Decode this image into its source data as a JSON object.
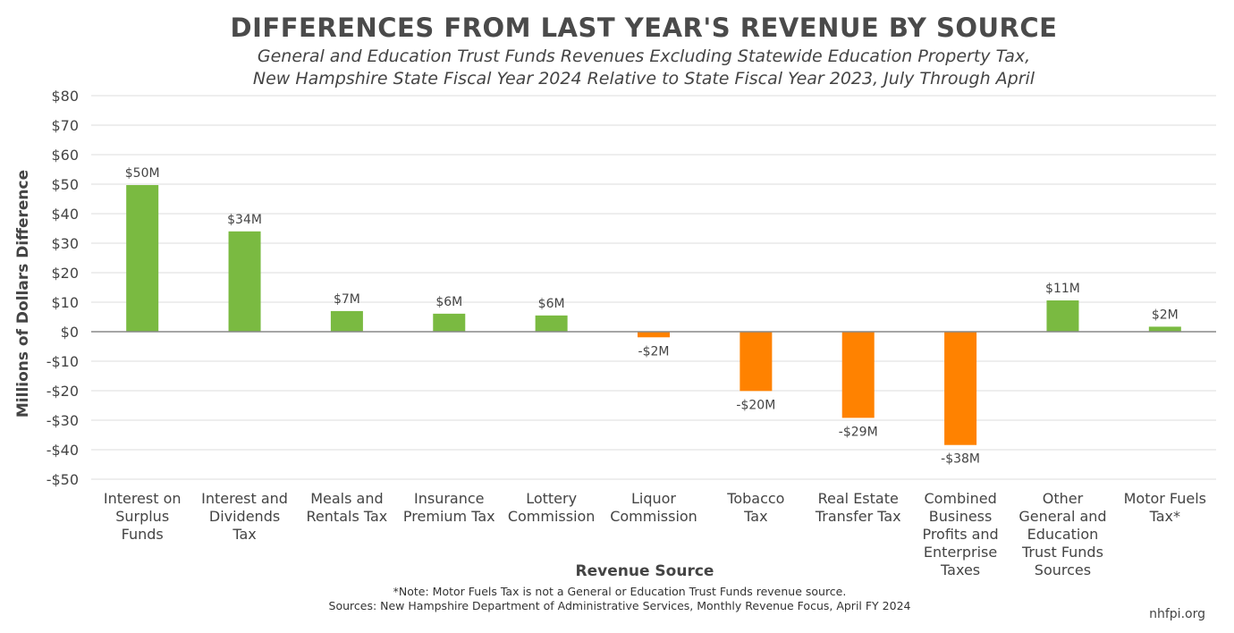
{
  "chart_data": {
    "type": "bar",
    "title": "DIFFERENCES FROM LAST YEAR'S REVENUE BY SOURCE",
    "subtitle_lines": [
      "General and Education Trust Funds Revenues Excluding Statewide Education Property Tax,",
      "New Hampshire State Fiscal Year 2024 Relative to State Fiscal Year 2023, July Through April"
    ],
    "xlabel": "Revenue Source",
    "ylabel": "Millions of Dollars Difference",
    "ylim": [
      -50,
      80
    ],
    "yticks": [
      80,
      70,
      60,
      50,
      40,
      30,
      20,
      10,
      0,
      -10,
      -20,
      -30,
      -40,
      -50
    ],
    "ytick_labels": [
      "$80",
      "$70",
      "$60",
      "$50",
      "$40",
      "$30",
      "$20",
      "$10",
      "$0",
      "-$10",
      "-$20",
      "-$30",
      "-$40",
      "-$50"
    ],
    "grid": true,
    "categories": [
      [
        "Interest on",
        "Surplus",
        "Funds"
      ],
      [
        "Interest and",
        "Dividends",
        "Tax"
      ],
      [
        "Meals and",
        "Rentals Tax"
      ],
      [
        "Insurance",
        "Premium Tax"
      ],
      [
        "Lottery",
        "Commission"
      ],
      [
        "Liquor",
        "Commission"
      ],
      [
        "Tobacco",
        "Tax"
      ],
      [
        "Real Estate",
        "Transfer Tax"
      ],
      [
        "Combined",
        "Business",
        "Profits and",
        "Enterprise",
        "Taxes"
      ],
      [
        "Other",
        "General and",
        "Education",
        "Trust Funds",
        "Sources"
      ],
      [
        "Motor Fuels",
        "Tax*"
      ]
    ],
    "values": [
      49.7,
      34.0,
      7.0,
      6.1,
      5.5,
      -1.9,
      -20.1,
      -29.2,
      -38.4,
      10.6,
      1.7
    ],
    "data_labels": [
      "$50M",
      "$34M",
      "$7M",
      "$6M",
      "$6M",
      "-$2M",
      "-$20M",
      "-$29M",
      "-$38M",
      "$11M",
      "$2M"
    ],
    "colors": {
      "positive": "#7aba41",
      "negative": "#ff8200"
    }
  },
  "footer": {
    "note": "*Note: Motor Fuels Tax is not a General or Education Trust Funds revenue source.",
    "sources": "Sources: New Hampshire Department of Administrative Services, Monthly Revenue Focus, April FY 2024",
    "brand": "nhfpi.org"
  }
}
